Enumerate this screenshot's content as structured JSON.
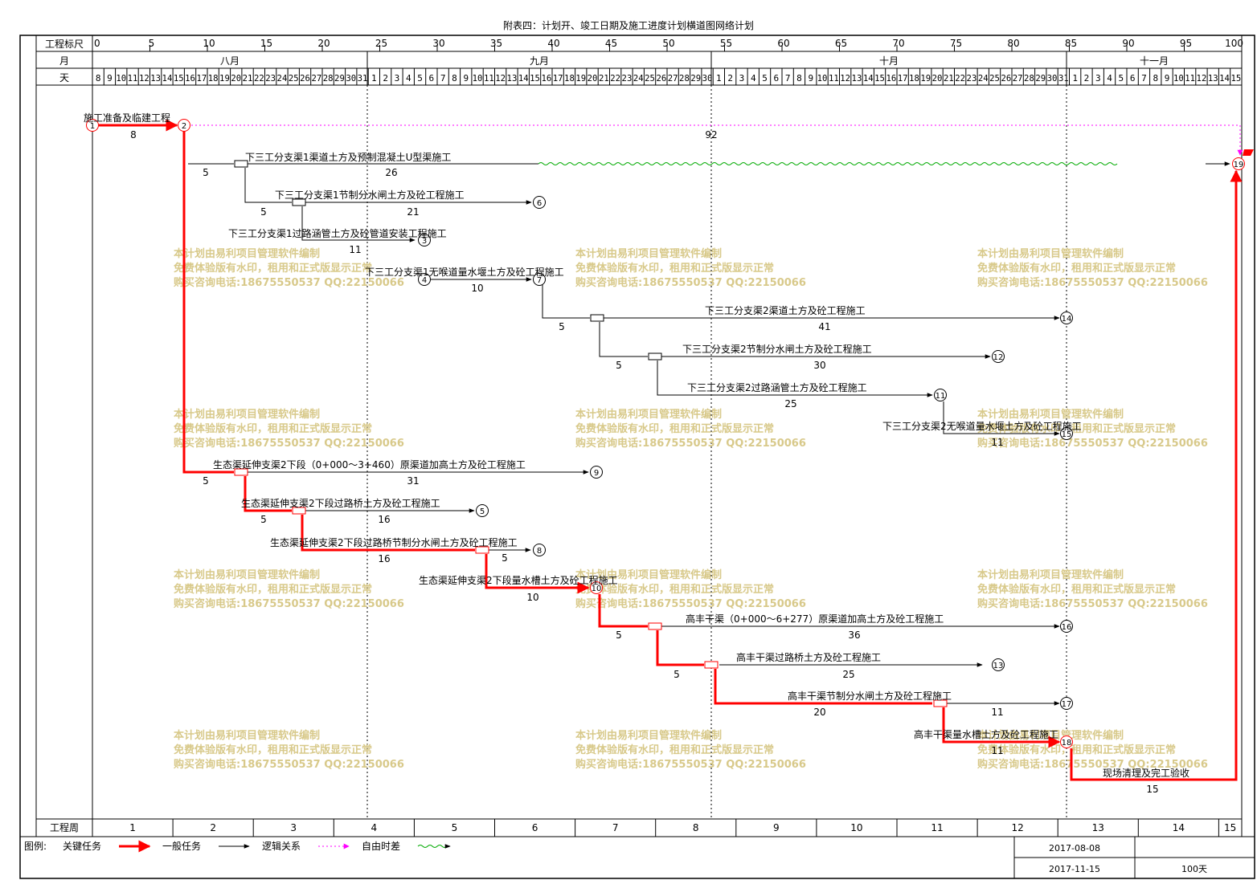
{
  "title": "附表四：计划开、竣工日期及施工进度计划横道图网络计划",
  "scale": {
    "label": "工程标尺",
    "ticks": [
      "0",
      "5",
      "10",
      "15",
      "20",
      "25",
      "30",
      "35",
      "40",
      "45",
      "50",
      "55",
      "60",
      "65",
      "70",
      "75",
      "80",
      "85",
      "90",
      "95",
      "100"
    ]
  },
  "months": {
    "label": "月",
    "items": [
      "八月",
      "九月",
      "十月",
      "十一月"
    ]
  },
  "days": {
    "label": "天",
    "values": [
      "8",
      "9",
      "10",
      "11",
      "12",
      "13",
      "14",
      "15",
      "16",
      "17",
      "18",
      "19",
      "20",
      "21",
      "22",
      "23",
      "24",
      "25",
      "26",
      "27",
      "28",
      "29",
      "30",
      "31",
      "1",
      "2",
      "3",
      "4",
      "5",
      "6",
      "7",
      "8",
      "9",
      "10",
      "11",
      "12",
      "13",
      "14",
      "15",
      "16",
      "17",
      "18",
      "19",
      "20",
      "21",
      "22",
      "23",
      "24",
      "25",
      "26",
      "27",
      "28",
      "29",
      "30",
      "1",
      "2",
      "3",
      "4",
      "5",
      "6",
      "7",
      "8",
      "9",
      "10",
      "11",
      "12",
      "13",
      "14",
      "15",
      "16",
      "17",
      "18",
      "19",
      "20",
      "21",
      "22",
      "23",
      "24",
      "25",
      "26",
      "27",
      "28",
      "29",
      "30",
      "31",
      "1",
      "2",
      "3",
      "4",
      "5",
      "6",
      "7",
      "8",
      "9",
      "10",
      "11",
      "12",
      "13",
      "14",
      "15"
    ]
  },
  "weeks": {
    "label": "工程周",
    "values": [
      "1",
      "2",
      "3",
      "4",
      "5",
      "6",
      "7",
      "8",
      "9",
      "10",
      "11",
      "12",
      "13",
      "14",
      "15"
    ]
  },
  "watermark": {
    "line1": "本计划由易利项目管理软件编制",
    "line2": "免费体验版有水印，租用和正式版显示正常",
    "line3": "购买咨询电话:18675550537 QQ:22150066"
  },
  "tasks": [
    {
      "id": "t1",
      "name": "施工准备及临建工程",
      "duration": "8",
      "critical": true
    },
    {
      "id": "t2",
      "name": "下三工分支渠1渠道土方及预制混凝土U型渠施工",
      "duration": "26",
      "critical": false
    },
    {
      "id": "t3",
      "name": "下三工分支渠1节制分水闸土方及砼工程施工",
      "duration": "21",
      "critical": false
    },
    {
      "id": "t4",
      "name": "下三工分支渠1过路涵管土方及砼管道安装工程施工",
      "duration": "11",
      "critical": false
    },
    {
      "id": "t5",
      "name": "下三工分支渠1无喉道量水堰土方及砼工程施工",
      "duration": "10",
      "critical": false
    },
    {
      "id": "t6",
      "name": "下三工分支渠2渠道土方及砼工程施工",
      "duration": "41",
      "critical": false
    },
    {
      "id": "t7",
      "name": "下三工分支渠2节制分水闸土方及砼工程施工",
      "duration": "30",
      "critical": false
    },
    {
      "id": "t8",
      "name": "下三工分支渠2过路涵管土方及砼工程施工",
      "duration": "25",
      "critical": false
    },
    {
      "id": "t9",
      "name": "下三工分支渠2无喉道量水堰土方及砼工程施工",
      "duration": "11",
      "critical": false
    },
    {
      "id": "t10",
      "name": "生态渠延伸支渠2下段（0+000～3+460）原渠道加高土方及砼工程施工",
      "duration": "31",
      "critical": false
    },
    {
      "id": "t11",
      "name": "生态渠延伸支渠2下段过路桥土方及砼工程施工",
      "duration": "16",
      "critical": false
    },
    {
      "id": "t12",
      "name": "生态渠延伸支渠2下段过路桥节制分水闸土方及砼工程施工",
      "duration": "16",
      "critical": true
    },
    {
      "id": "t13",
      "name": "生态渠延伸支渠2下段量水槽土方及砼工程施工",
      "duration": "10",
      "critical": true
    },
    {
      "id": "t14",
      "name": "高丰干渠（0+000～6+277）原渠道加高土方及砼工程施工",
      "duration": "36",
      "critical": false
    },
    {
      "id": "t15",
      "name": "高丰干渠过路桥土方及砼工程施工",
      "duration": "25",
      "critical": false
    },
    {
      "id": "t16",
      "name": "高丰干渠节制分水闸土方及砼工程施工",
      "duration": "20",
      "critical": true
    },
    {
      "id": "t17",
      "name": "高丰干渠量水槽土方及砼工程施工",
      "duration": "11",
      "critical": true
    },
    {
      "id": "t18",
      "name": "现场清理及完工验收",
      "duration": "15",
      "critical": true
    }
  ],
  "lags": {
    "l1": "5",
    "l2": "5",
    "l3": "5",
    "l4": "5",
    "l5": "5",
    "l6": "5",
    "l7": "5",
    "l8": "5",
    "l9": "5",
    "l10": "5",
    "l11": "5",
    "free1": "92",
    "free2": "11",
    "free3": "11",
    "free4": "11"
  },
  "nodes": [
    "1",
    "2",
    "3",
    "4",
    "5",
    "6",
    "7",
    "8",
    "9",
    "10",
    "11",
    "12",
    "13",
    "14",
    "15",
    "16",
    "17",
    "18",
    "19"
  ],
  "legend": {
    "label": "图例:",
    "critical": "关键任务",
    "normal": "一般任务",
    "logic": "逻辑关系",
    "float": "自由时差"
  },
  "info": {
    "start_date": "2017-08-08",
    "end_date": "2017-11-15",
    "total": "100天"
  },
  "colors": {
    "critical": "#ff0000",
    "normal": "#000000",
    "logic": "#ff00ff",
    "float": "#00aa00",
    "watermark": "#d8c98a"
  }
}
